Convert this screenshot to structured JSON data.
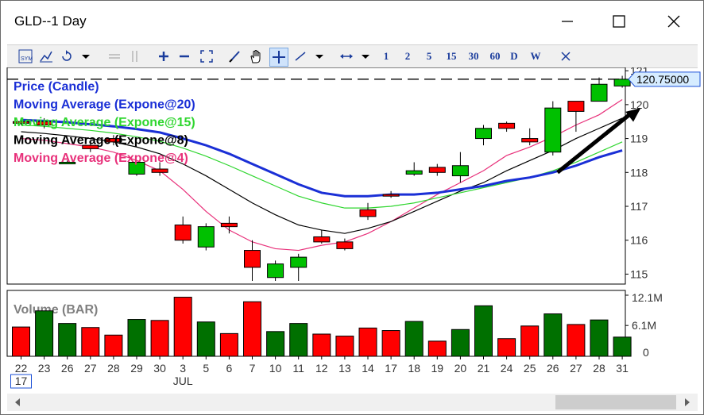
{
  "window": {
    "title": "GLD--1 Day",
    "minimize_icon": "minimize-icon",
    "maximize_icon": "maximize-icon",
    "close_icon": "close-icon"
  },
  "toolbar": {
    "intervals": [
      "1",
      "2",
      "5",
      "15",
      "30",
      "60",
      "D",
      "W"
    ],
    "icons": [
      "symbol-icon",
      "chart-type-icon",
      "refresh-icon",
      "dropdown-icon",
      "separator-icon",
      "bars-icon",
      "zoom-in-icon",
      "zoom-out-icon",
      "fit-icon",
      "draw-icon",
      "hand-icon",
      "crosshair-icon",
      "line-tool-icon",
      "dropdown-icon",
      "scroll-icon",
      "dropdown-icon",
      "close-chart-icon"
    ]
  },
  "colors": {
    "up": "#00c000",
    "down": "#ff0000",
    "ema20": "#1a2fd6",
    "ema15": "#2fd62f",
    "ema8": "#000000",
    "ema4": "#e8307a",
    "price_label_bg": "#d6ecff"
  },
  "last_price_label": "120.75000",
  "chart_data": {
    "type": "candlestick",
    "legend": [
      "Price (Candle)",
      "Moving Average (Expone@20)",
      "Moving Average (Expone@15)",
      "Moving Average (Expone@8)",
      "Moving Average (Expone@4)"
    ],
    "legend_colors": [
      "#1a2fd6",
      "#1a2fd6",
      "#2fd62f",
      "#000000",
      "#e8307a"
    ],
    "dates": [
      "22",
      "23",
      "26",
      "27",
      "28",
      "29",
      "30",
      "3",
      "5",
      "6",
      "7",
      "10",
      "11",
      "12",
      "13",
      "14",
      "17",
      "18",
      "19",
      "20",
      "21",
      "24",
      "25",
      "26",
      "27",
      "28",
      "31"
    ],
    "date_annotations": [
      {
        "index": 0,
        "label": "17"
      },
      {
        "index": 7,
        "label": "JUL"
      }
    ],
    "candles": [
      {
        "o": 119.5,
        "h": 119.6,
        "l": 119.4,
        "c": 119.45
      },
      {
        "o": 119.5,
        "h": 119.6,
        "l": 119.3,
        "c": 119.4
      },
      {
        "o": 118.3,
        "h": 118.35,
        "l": 118.25,
        "c": 118.3
      },
      {
        "o": 118.8,
        "h": 118.9,
        "l": 118.6,
        "c": 118.7
      },
      {
        "o": 119.0,
        "h": 119.1,
        "l": 118.8,
        "c": 118.9
      },
      {
        "o": 117.95,
        "h": 118.3,
        "l": 117.9,
        "c": 118.3
      },
      {
        "o": 118.1,
        "h": 118.3,
        "l": 117.9,
        "c": 118.0
      },
      {
        "o": 116.45,
        "h": 116.7,
        "l": 115.9,
        "c": 116.0
      },
      {
        "o": 115.8,
        "h": 116.5,
        "l": 115.7,
        "c": 116.4
      },
      {
        "o": 116.5,
        "h": 116.7,
        "l": 116.2,
        "c": 116.4
      },
      {
        "o": 115.7,
        "h": 116.0,
        "l": 114.8,
        "c": 115.2
      },
      {
        "o": 114.9,
        "h": 115.4,
        "l": 114.8,
        "c": 115.3
      },
      {
        "o": 115.2,
        "h": 115.6,
        "l": 114.8,
        "c": 115.5
      },
      {
        "o": 116.1,
        "h": 116.3,
        "l": 115.9,
        "c": 115.95
      },
      {
        "o": 115.95,
        "h": 116.05,
        "l": 115.7,
        "c": 115.75
      },
      {
        "o": 116.9,
        "h": 117.1,
        "l": 116.6,
        "c": 116.7
      },
      {
        "o": 117.35,
        "h": 117.45,
        "l": 117.25,
        "c": 117.3
      },
      {
        "o": 117.95,
        "h": 118.3,
        "l": 117.9,
        "c": 118.05
      },
      {
        "o": 118.15,
        "h": 118.25,
        "l": 117.9,
        "c": 118.0
      },
      {
        "o": 117.9,
        "h": 118.6,
        "l": 117.7,
        "c": 118.2
      },
      {
        "o": 119.0,
        "h": 119.4,
        "l": 118.8,
        "c": 119.3
      },
      {
        "o": 119.45,
        "h": 119.5,
        "l": 119.2,
        "c": 119.3
      },
      {
        "o": 119.0,
        "h": 119.3,
        "l": 118.8,
        "c": 118.9
      },
      {
        "o": 118.6,
        "h": 120.1,
        "l": 118.5,
        "c": 119.9
      },
      {
        "o": 120.1,
        "h": 120.1,
        "l": 119.2,
        "c": 119.8
      },
      {
        "o": 120.1,
        "h": 120.8,
        "l": 120.1,
        "c": 120.6
      },
      {
        "o": 120.55,
        "h": 120.85,
        "l": 120.5,
        "c": 120.75
      }
    ],
    "ema20": [
      119.55,
      119.52,
      119.48,
      119.42,
      119.36,
      119.28,
      119.18,
      119.0,
      118.8,
      118.55,
      118.25,
      117.95,
      117.65,
      117.4,
      117.3,
      117.3,
      117.35,
      117.35,
      117.4,
      117.5,
      117.6,
      117.75,
      117.85,
      118.0,
      118.2,
      118.45,
      118.65
    ],
    "ema15": [
      119.4,
      119.36,
      119.3,
      119.24,
      119.16,
      119.05,
      118.92,
      118.72,
      118.48,
      118.2,
      117.9,
      117.6,
      117.3,
      117.1,
      116.95,
      116.95,
      117.0,
      117.1,
      117.25,
      117.4,
      117.55,
      117.7,
      117.85,
      118.05,
      118.3,
      118.6,
      118.9
    ],
    "ema8": [
      119.2,
      119.15,
      119.08,
      119.0,
      118.9,
      118.75,
      118.55,
      118.25,
      117.9,
      117.5,
      117.1,
      116.75,
      116.45,
      116.3,
      116.2,
      116.35,
      116.55,
      116.85,
      117.15,
      117.45,
      117.7,
      118.05,
      118.35,
      118.65,
      119.0,
      119.3,
      119.6
    ],
    "ema4": [
      119.0,
      118.95,
      118.85,
      118.75,
      118.6,
      118.35,
      118.05,
      117.5,
      116.85,
      116.3,
      115.95,
      115.75,
      115.7,
      115.85,
      115.95,
      116.2,
      116.55,
      116.95,
      117.35,
      117.7,
      118.05,
      118.5,
      118.75,
      119.05,
      119.4,
      119.7,
      120.15
    ],
    "ylim": [
      114.8,
      121.05
    ],
    "yticks": [
      "121",
      "120",
      "119",
      "118",
      "117",
      "116",
      "115"
    ],
    "volume": {
      "label": "Volume (BAR)",
      "values": [
        5.8,
        9.0,
        6.5,
        5.7,
        4.2,
        7.3,
        7.1,
        11.7,
        6.8,
        4.5,
        10.8,
        4.9,
        6.5,
        4.4,
        4.0,
        5.6,
        5.1,
        6.9,
        3.0,
        5.3,
        10.0,
        3.5,
        6.0,
        8.4,
        6.3,
        7.2,
        3.8
      ],
      "up": [
        false,
        true,
        true,
        false,
        false,
        true,
        false,
        false,
        true,
        false,
        false,
        true,
        true,
        false,
        false,
        false,
        false,
        true,
        false,
        true,
        true,
        false,
        false,
        true,
        false,
        true,
        true
      ],
      "ylim": [
        0,
        12.1
      ],
      "yticks": [
        "12.1M",
        "6.1M",
        "0"
      ]
    },
    "dashed_level": 120.75,
    "arrow": {
      "from_index": 23.2,
      "from_value": 118.0,
      "to_index": 26.8,
      "to_value": 119.9
    }
  }
}
